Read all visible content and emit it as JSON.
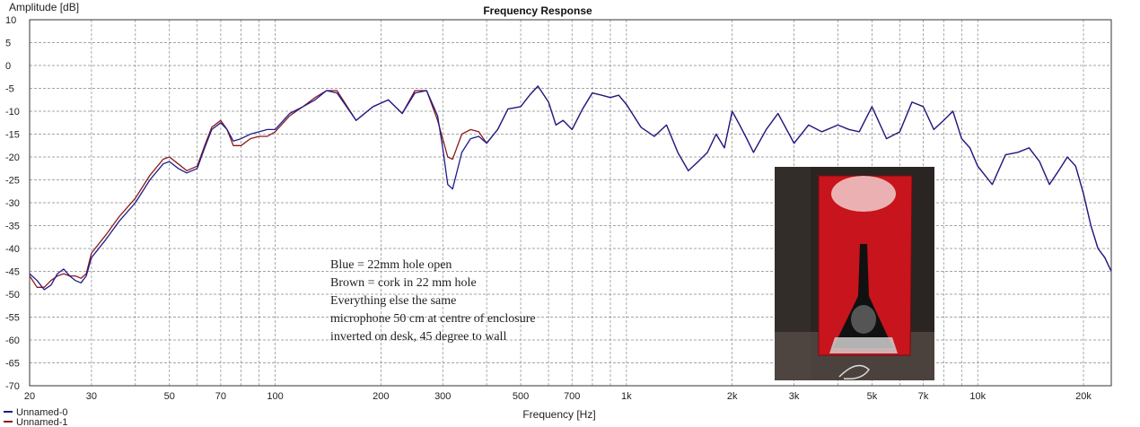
{
  "chart_data": {
    "type": "line",
    "title": "Frequency Response",
    "xlabel": "Frequency [Hz]",
    "ylabel": "Amplitude [dB]",
    "xscale": "log",
    "xlim": [
      20,
      24000
    ],
    "ylim": [
      -70,
      10
    ],
    "yticks": [
      10,
      5,
      0,
      -5,
      -10,
      -15,
      -20,
      -25,
      -30,
      -35,
      -40,
      -45,
      -50,
      -55,
      -60,
      -65,
      -70
    ],
    "xticks": [
      {
        "v": 20,
        "label": "20"
      },
      {
        "v": 30,
        "label": "30"
      },
      {
        "v": 50,
        "label": "50"
      },
      {
        "v": 70,
        "label": "70"
      },
      {
        "v": 100,
        "label": "100"
      },
      {
        "v": 200,
        "label": "200"
      },
      {
        "v": 300,
        "label": "300"
      },
      {
        "v": 500,
        "label": "500"
      },
      {
        "v": 700,
        "label": "700"
      },
      {
        "v": 1000,
        "label": "1k"
      },
      {
        "v": 2000,
        "label": "2k"
      },
      {
        "v": 3000,
        "label": "3k"
      },
      {
        "v": 5000,
        "label": "5k"
      },
      {
        "v": 7000,
        "label": "7k"
      },
      {
        "v": 10000,
        "label": "10k"
      },
      {
        "v": 20000,
        "label": "20k"
      }
    ],
    "grid": true,
    "legend_position": "bottom-left",
    "series": [
      {
        "name": "Unnamed-0",
        "color": "#1c1c8c",
        "x": [
          20,
          21,
          22,
          23,
          24,
          25,
          26,
          27,
          28,
          29,
          30,
          33,
          36,
          40,
          44,
          48,
          50,
          53,
          56,
          60,
          63,
          66,
          70,
          73,
          76,
          80,
          85,
          90,
          95,
          100,
          110,
          120,
          130,
          140,
          150,
          170,
          190,
          210,
          230,
          250,
          270,
          290,
          300,
          310,
          320,
          340,
          360,
          380,
          400,
          430,
          460,
          500,
          530,
          560,
          600,
          630,
          660,
          700,
          750,
          800,
          850,
          900,
          950,
          1000,
          1100,
          1200,
          1300,
          1400,
          1500,
          1600,
          1700,
          1800,
          1900,
          2000,
          2100,
          2200,
          2300,
          2500,
          2700,
          3000,
          3300,
          3600,
          4000,
          4300,
          4600,
          5000,
          5500,
          6000,
          6500,
          7000,
          7500,
          8000,
          8500,
          9000,
          9500,
          10000,
          11000,
          12000,
          13000,
          14000,
          15000,
          16000,
          17000,
          18000,
          19000,
          20000,
          21000,
          22000,
          23000,
          24000
        ],
        "y": [
          -45.5,
          -47,
          -49,
          -48,
          -45.5,
          -44.5,
          -46,
          -47,
          -47.5,
          -46,
          -42,
          -38,
          -34,
          -30,
          -25,
          -21.5,
          -21,
          -22.5,
          -23.5,
          -22.5,
          -18,
          -14,
          -12.5,
          -14,
          -16.5,
          -16,
          -15,
          -14.5,
          -14,
          -14,
          -10.5,
          -9,
          -7.5,
          -5.5,
          -6,
          -12,
          -9,
          -7.5,
          -10.5,
          -6,
          -5.5,
          -11,
          -18,
          -26,
          -27,
          -19,
          -16,
          -15.5,
          -17,
          -14,
          -9.5,
          -9,
          -6.5,
          -4.5,
          -8,
          -13,
          -12,
          -14,
          -9.5,
          -6,
          -6.5,
          -7,
          -6.5,
          -8.5,
          -13.5,
          -15.5,
          -13,
          -19,
          -23,
          -21,
          -19,
          -15,
          -18,
          -10,
          -13,
          -16,
          -19,
          -14,
          -10.5,
          -17,
          -13,
          -14.5,
          -13,
          -14,
          -14.5,
          -9,
          -16,
          -14.5,
          -8,
          -9,
          -14,
          -12,
          -10,
          -16,
          -18,
          -22,
          -26,
          -19.5,
          -19,
          -18,
          -21,
          -26,
          -23,
          -20,
          -22,
          -28,
          -35,
          -40,
          -42,
          -45
        ]
      },
      {
        "name": "Unnamed-1",
        "color": "#8b1a1a",
        "x": [
          20,
          21,
          22,
          23,
          24,
          25,
          26,
          27,
          28,
          29,
          30,
          33,
          36,
          40,
          44,
          48,
          50,
          53,
          56,
          60,
          63,
          66,
          70,
          73,
          76,
          80,
          85,
          90,
          95,
          100,
          110,
          120,
          130,
          140,
          150,
          170,
          190,
          210,
          230,
          250,
          270,
          290,
          300,
          310,
          320,
          340,
          360,
          380,
          400,
          430,
          460,
          500,
          530,
          560,
          600,
          630,
          660,
          700,
          750,
          800,
          850,
          900,
          950,
          1000,
          1100,
          1200,
          1300,
          1400,
          1500,
          1600,
          1700,
          1800,
          1900,
          2000,
          2100,
          2200,
          2300,
          2500,
          2700,
          3000,
          3300,
          3600,
          4000,
          4300,
          4600,
          5000,
          5500,
          6000,
          6500,
          7000,
          7500,
          8000,
          8500,
          9000,
          9500,
          10000,
          11000,
          12000,
          13000,
          14000,
          15000,
          16000,
          17000,
          18000,
          19000,
          20000,
          21000,
          22000,
          23000,
          24000
        ],
        "y": [
          -46,
          -48.5,
          -48.5,
          -47,
          -46,
          -45.5,
          -46,
          -46,
          -46.5,
          -45.5,
          -41,
          -37,
          -33,
          -29,
          -24,
          -20.5,
          -20,
          -21.5,
          -23,
          -22,
          -17.5,
          -13.5,
          -12,
          -14,
          -17.5,
          -17.5,
          -16,
          -15.5,
          -15.5,
          -14.5,
          -11,
          -9,
          -7,
          -5.5,
          -5.5,
          -12,
          -9,
          -7.5,
          -10.5,
          -5.5,
          -5.5,
          -12,
          -16,
          -20,
          -20.5,
          -15,
          -14,
          -14.5,
          -17,
          -14,
          -9.5,
          -9,
          -6.5,
          -4.5,
          -8,
          -13,
          -12,
          -14,
          -9.5,
          -6,
          -6.5,
          -7,
          -6.5,
          -8.5,
          -13.5,
          -15.5,
          -13,
          -19,
          -23,
          -21,
          -19,
          -15,
          -18,
          -10,
          -13,
          -16,
          -19,
          -14,
          -10.5,
          -17,
          -13,
          -14.5,
          -13,
          -14,
          -14.5,
          -9,
          -16,
          -14.5,
          -8,
          -9,
          -14,
          -12,
          -10,
          -16,
          -18,
          -22,
          -26,
          -19.5,
          -19,
          -18,
          -21,
          -26,
          -23,
          -20,
          -22,
          -28,
          -35,
          -40,
          -42,
          -45
        ]
      }
    ],
    "annotations": [
      "Blue = 22mm hole open",
      "Brown = cork in 22 mm hole",
      "Everything else the same",
      "microphone 50 cm at centre of enclosure",
      "inverted on desk, 45 degree to wall"
    ]
  },
  "inset_photo": {
    "subject": "red-speaker-enclosure-photo",
    "enclosure_color": "#c8141c",
    "background_color": "#2a2422"
  }
}
